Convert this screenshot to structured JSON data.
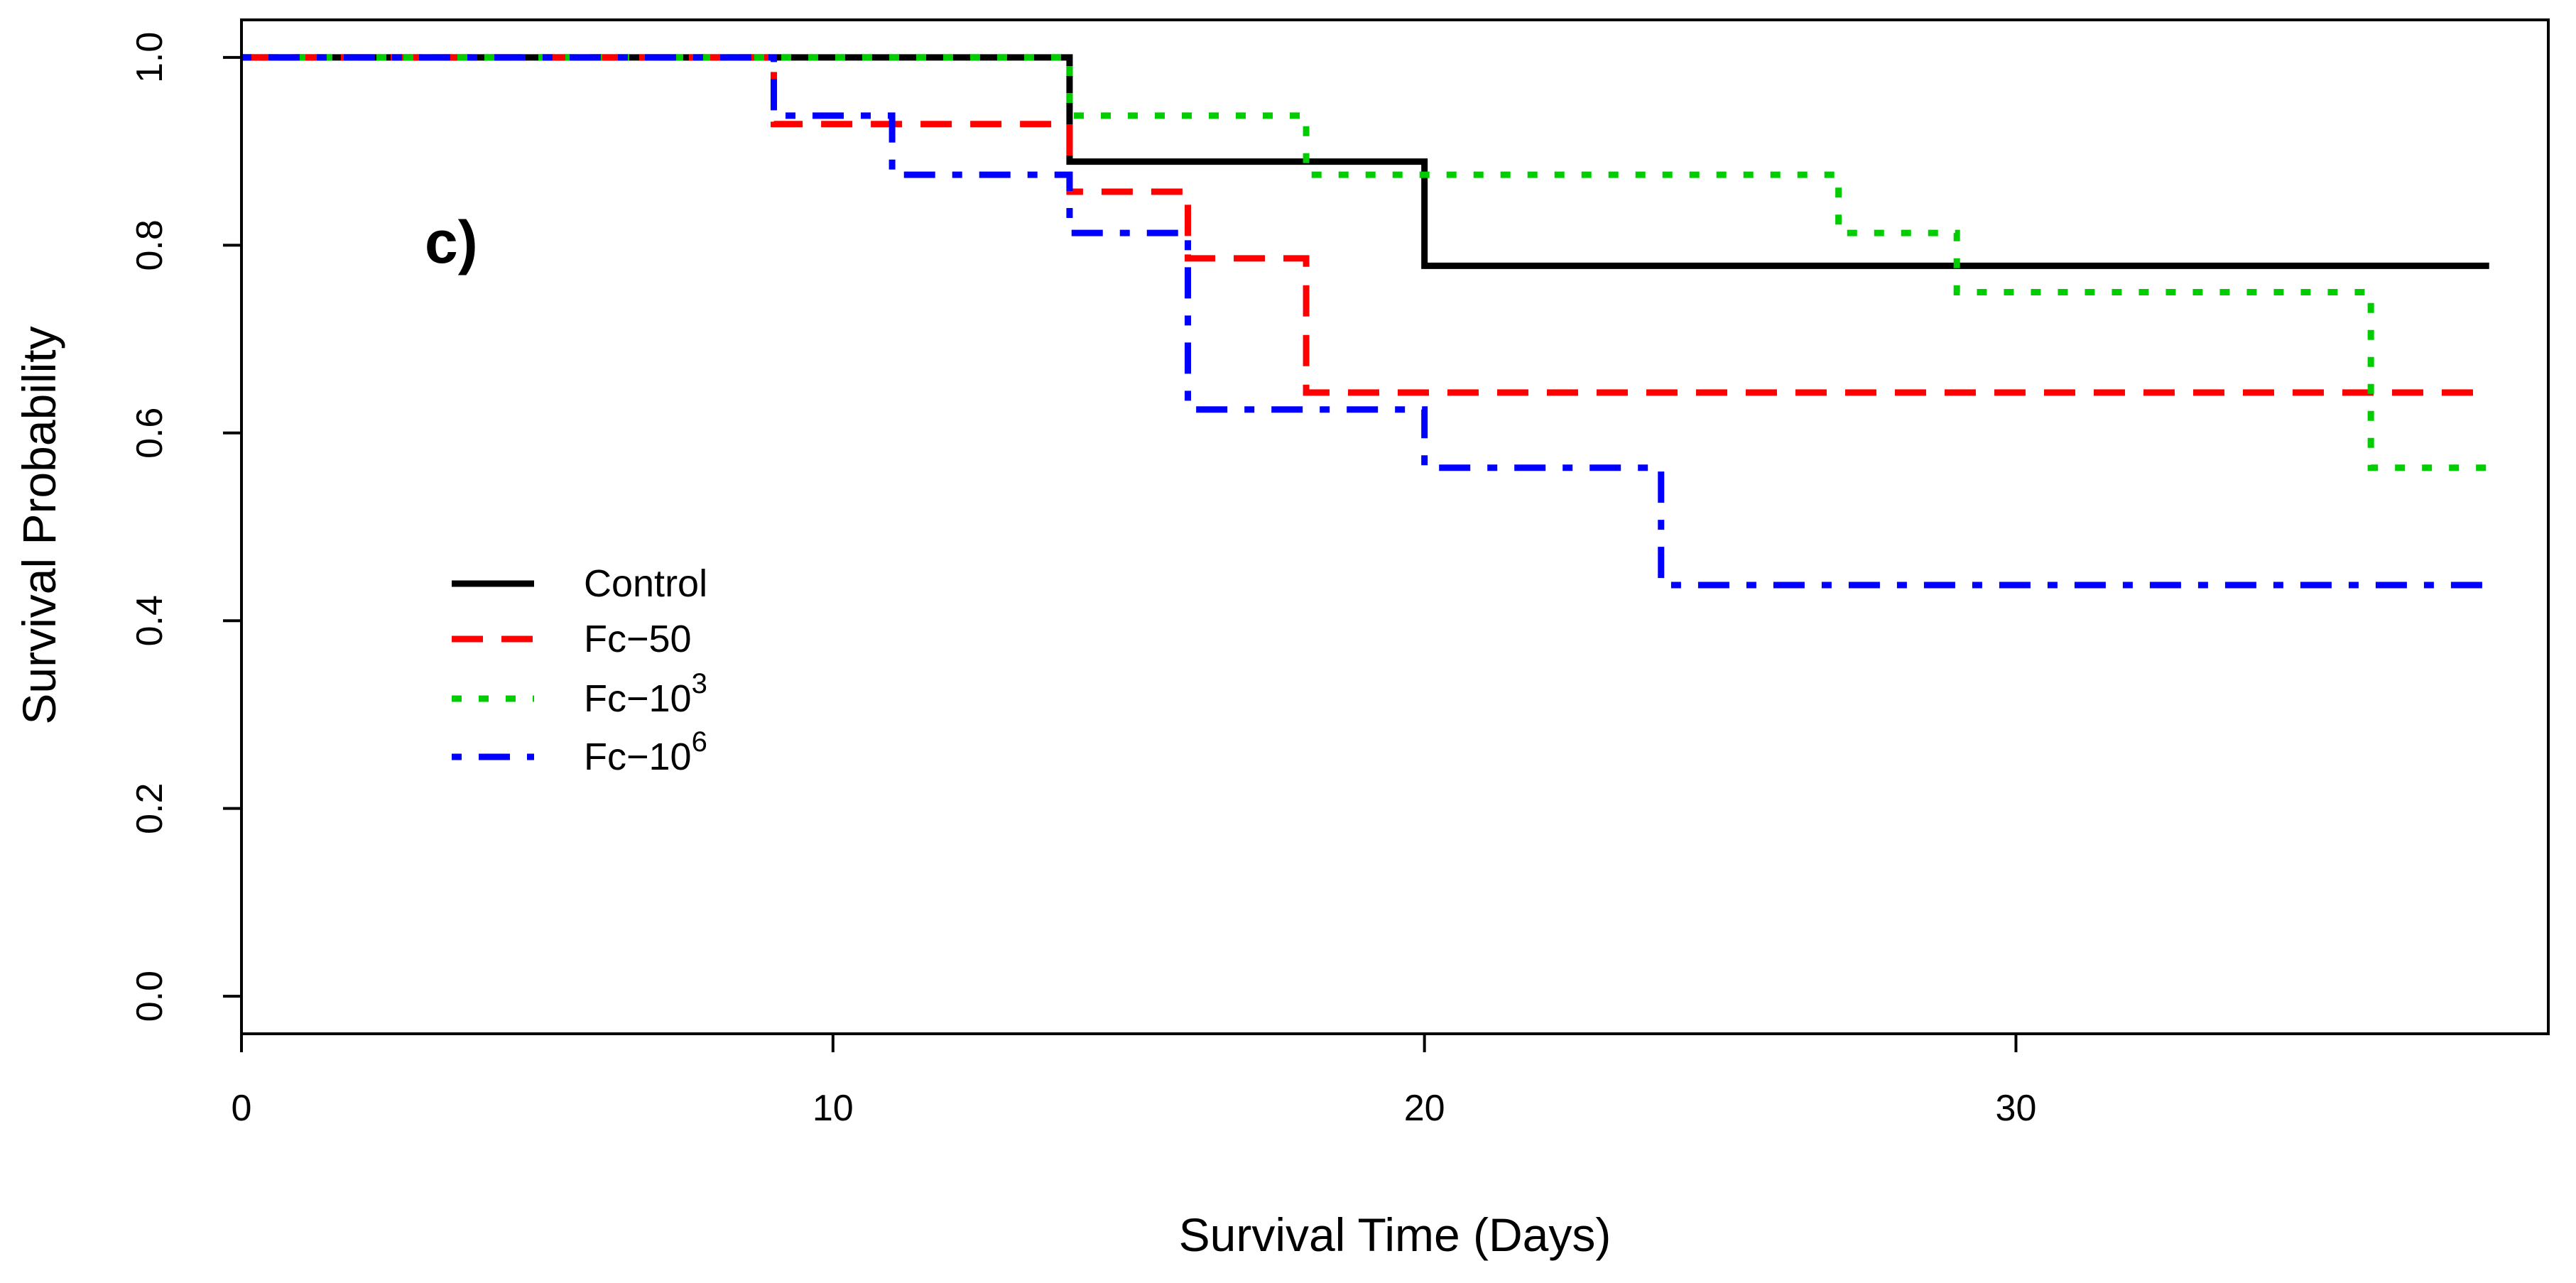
{
  "chart_data": {
    "type": "line",
    "subtype": "kaplan-meier-step",
    "panel_label": "c)",
    "xlabel": "Survival Time (Days)",
    "ylabel": "Survival Probability",
    "xlim": [
      0,
      39
    ],
    "ylim": [
      -0.04,
      1.04
    ],
    "x_ticks": [
      0,
      10,
      20,
      30
    ],
    "x_tick_labels": [
      "0",
      "10",
      "20",
      "30"
    ],
    "y_ticks": [
      0.0,
      0.2,
      0.4,
      0.6,
      0.8,
      1.0
    ],
    "y_tick_labels": [
      "0.0",
      "0.2",
      "0.4",
      "0.6",
      "0.8",
      "1.0"
    ],
    "grid": false,
    "legend_position": "middle-left",
    "series": [
      {
        "name": "Control",
        "legend_base": "Control",
        "legend_sup": "",
        "color": "#000000",
        "dash": "solid",
        "x": [
          0,
          14,
          20,
          38
        ],
        "y": [
          1.0,
          0.889,
          0.778,
          0.778
        ]
      },
      {
        "name": "Fc-50",
        "legend_base": "Fc−50",
        "legend_sup": "",
        "color": "#ff0000",
        "dash": "dashed",
        "x": [
          0,
          9,
          14,
          16,
          18,
          38
        ],
        "y": [
          1.0,
          0.929,
          0.857,
          0.786,
          0.643,
          0.643
        ]
      },
      {
        "name": "Fc-10^3",
        "legend_base": "Fc−10",
        "legend_sup": "3",
        "color": "#00cd00",
        "dash": "dotted",
        "x": [
          0,
          14,
          18,
          27,
          29,
          36,
          38
        ],
        "y": [
          1.0,
          0.938,
          0.875,
          0.813,
          0.75,
          0.563,
          0.563
        ]
      },
      {
        "name": "Fc-10^6",
        "legend_base": "Fc−10",
        "legend_sup": "6",
        "color": "#0000ff",
        "dash": "dotdash",
        "x": [
          0,
          9,
          11,
          14,
          16,
          20,
          24,
          38
        ],
        "y": [
          1.0,
          0.938,
          0.875,
          0.813,
          0.625,
          0.563,
          0.438,
          0.438
        ]
      }
    ]
  }
}
